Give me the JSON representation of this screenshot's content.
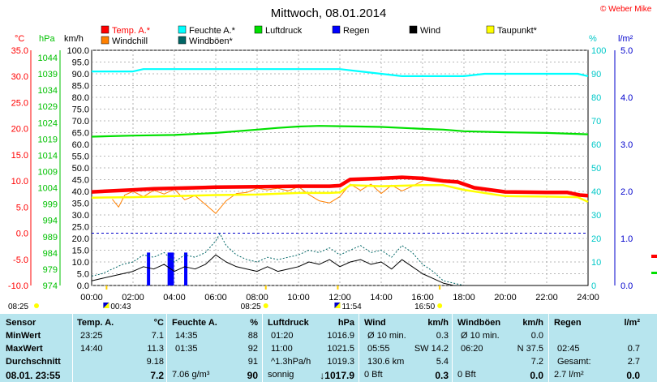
{
  "title": "Mittwoch, 08.01.2014",
  "copyright": "© Weber Mike",
  "colors": {
    "temp": "#ff0000",
    "humidity": "#00ffff",
    "pressure": "#00e000",
    "rain": "#0000ff",
    "wind": "#000000",
    "dewpoint": "#ffff00",
    "windchill": "#ff8000",
    "gusts": "#006666",
    "grid": "#a0a0a0",
    "zero_line": "#0000cc",
    "table_bg": "#b7e5ee"
  },
  "axes": {
    "temp": {
      "label": "°C",
      "ticks": [
        "35.0",
        "30.0",
        "25.0",
        "20.0",
        "15.0",
        "10.0",
        "5.0",
        "0.0",
        "-5.0",
        "-10.0"
      ]
    },
    "pressure": {
      "label": "hPa",
      "ticks": [
        "1044",
        "1039",
        "1034",
        "1029",
        "1024",
        "1019",
        "1014",
        "1009",
        "1004",
        "999",
        "994",
        "989",
        "984",
        "979",
        "974"
      ]
    },
    "wind": {
      "label": "km/h",
      "ticks": [
        "100.0",
        "95.0",
        "90.0",
        "85.0",
        "80.0",
        "75.0",
        "70.0",
        "65.0",
        "60.0",
        "55.0",
        "50.0",
        "45.0",
        "40.0",
        "35.0",
        "30.0",
        "25.0",
        "20.0",
        "15.0",
        "10.0",
        "5.0",
        "0.0"
      ]
    },
    "humidity": {
      "label": "%",
      "ticks": [
        "100",
        "90",
        "80",
        "70",
        "60",
        "50",
        "40",
        "30",
        "20",
        "10",
        "0"
      ]
    },
    "rain": {
      "label": "l/m²",
      "ticks": [
        "5.0",
        "4.0",
        "3.0",
        "2.0",
        "1.0",
        "0.0"
      ]
    },
    "time_ticks": [
      "00:00",
      "02:00",
      "04:00",
      "06:00",
      "08:00",
      "10:00",
      "12:00",
      "14:00",
      "16:00",
      "18:00",
      "20:00",
      "22:00",
      "24:00"
    ]
  },
  "legend": [
    {
      "label": "Temp. A.*",
      "color": "#ff0000"
    },
    {
      "label": "Feuchte A.*",
      "color": "#00ffff"
    },
    {
      "label": "Luftdruck",
      "color": "#00e000"
    },
    {
      "label": "Regen",
      "color": "#0000ff"
    },
    {
      "label": "Wind",
      "color": "#000000"
    },
    {
      "label": "Taupunkt*",
      "color": "#ffff00"
    },
    {
      "label": "Windchill",
      "color": "#ff8000"
    },
    {
      "label": "Windböen*",
      "color": "#006666"
    }
  ],
  "sun_markers": [
    {
      "label": "08:25",
      "hour": -0.3
    },
    {
      "label": "00:43",
      "hour": 0.72
    },
    {
      "label": "08:25",
      "hour": 8.42
    },
    {
      "label": "11:54",
      "hour": 11.9
    },
    {
      "label": "16:50",
      "hour": 16.83
    }
  ],
  "chart_data": {
    "type": "line",
    "title": "Mittwoch, 08.01.2014",
    "x_unit": "hour",
    "xlim": [
      0,
      24
    ],
    "series": [
      {
        "name": "Temp. A.*",
        "axis": "temp",
        "ylim": [
          -10,
          35
        ],
        "x": [
          0,
          2,
          3,
          4,
          6,
          8,
          10,
          11.5,
          12,
          12.5,
          14,
          15,
          16,
          17,
          17.7,
          18.5,
          20,
          22,
          23,
          23.6,
          24
        ],
        "y": [
          7.9,
          8.3,
          8.5,
          8.6,
          8.8,
          8.9,
          9.0,
          9.0,
          9.1,
          10.3,
          10.5,
          10.7,
          10.5,
          10.0,
          9.8,
          8.7,
          7.9,
          7.8,
          7.8,
          7.3,
          7.2
        ]
      },
      {
        "name": "Feuchte A.*",
        "axis": "humidity",
        "ylim": [
          0,
          100
        ],
        "x": [
          0,
          2,
          2.5,
          4,
          6,
          8,
          10,
          12,
          13,
          14,
          15,
          16,
          17,
          18,
          19,
          20,
          22,
          23.5,
          24
        ],
        "y": [
          91,
          91,
          92,
          92,
          92,
          92,
          92,
          92,
          91,
          90,
          89,
          89,
          89,
          89,
          90,
          90,
          90,
          90,
          89
        ]
      },
      {
        "name": "Luftdruck",
        "axis": "pressure",
        "ylim": [
          974,
          1044
        ],
        "x": [
          0,
          2,
          4,
          6,
          8,
          9,
          10,
          11,
          12,
          13,
          14,
          15,
          16,
          17,
          18,
          20,
          22,
          24
        ],
        "y": [
          1018.3,
          1018.6,
          1018.8,
          1019.4,
          1020.4,
          1020.9,
          1021.3,
          1021.5,
          1021.4,
          1021.3,
          1021.2,
          1020.9,
          1020.6,
          1020.4,
          1019.9,
          1019.6,
          1019.4,
          1019.0
        ]
      },
      {
        "name": "Taupunkt*",
        "axis": "temp",
        "ylim": [
          -10,
          35
        ],
        "x": [
          0,
          2,
          4,
          6,
          8,
          10,
          11.5,
          12,
          12.5,
          14,
          16,
          17,
          18,
          20,
          22,
          23.5,
          24
        ],
        "y": [
          6.8,
          6.9,
          7.1,
          7.3,
          7.4,
          7.7,
          7.7,
          7.8,
          9.2,
          9.0,
          9.2,
          9.2,
          8.3,
          7.1,
          7.0,
          6.9,
          6.0
        ]
      },
      {
        "name": "Windchill",
        "axis": "temp",
        "ylim": [
          -10,
          35
        ],
        "x": [
          1,
          1.3,
          1.6,
          2,
          2.5,
          3,
          3.5,
          4,
          4.5,
          5,
          5.5,
          6,
          6.5,
          7,
          7.5,
          8,
          8.5,
          9,
          9.5,
          10,
          10.5,
          11,
          11.5,
          12,
          12.5,
          13,
          13.5,
          14,
          14.5,
          15,
          15.5,
          16
        ],
        "y": [
          6.5,
          5.0,
          7.3,
          8.0,
          7.0,
          8.2,
          7.5,
          8.4,
          6.4,
          7.2,
          5.5,
          3.8,
          6.2,
          7.6,
          7.8,
          8.6,
          8.3,
          8.6,
          8.1,
          8.9,
          7.4,
          6.2,
          5.8,
          7.0,
          9.4,
          8.2,
          9.4,
          7.6,
          9.2,
          8.1,
          9.0,
          10.0
        ]
      },
      {
        "name": "Wind",
        "axis": "wind",
        "ylim": [
          0,
          100
        ],
        "x": [
          0,
          0.5,
          1,
          1.5,
          2,
          2.5,
          3,
          3.5,
          4,
          4.5,
          5,
          5.5,
          6,
          6.5,
          7,
          7.5,
          8,
          8.5,
          9,
          9.5,
          10,
          10.5,
          11,
          11.5,
          12,
          12.5,
          13,
          13.5,
          14,
          14.5,
          15,
          15.5,
          16,
          16.5,
          17,
          17.5,
          18,
          20,
          22,
          24
        ],
        "y": [
          2,
          3,
          4,
          5,
          6,
          8,
          7,
          9,
          6,
          8,
          7,
          9,
          13,
          10,
          8,
          7,
          6,
          8,
          6,
          7,
          8,
          10,
          9,
          11,
          8,
          10,
          11,
          9,
          10,
          7,
          11,
          8,
          5,
          3,
          1,
          0,
          0,
          0,
          0,
          0
        ]
      },
      {
        "name": "Windböen*",
        "axis": "wind",
        "ylim": [
          0,
          100
        ],
        "x": [
          0,
          0.5,
          1,
          1.5,
          2,
          2.5,
          3,
          3.5,
          4,
          4.5,
          5,
          5.5,
          6,
          6.2,
          6.5,
          7,
          7.5,
          8,
          8.5,
          9,
          9.5,
          10,
          10.5,
          11,
          11.5,
          12,
          12.5,
          13,
          13.5,
          14,
          14.5,
          15,
          15.5,
          16,
          16.5,
          17,
          17.5,
          18
        ],
        "y": [
          4,
          5,
          7,
          9,
          10,
          13,
          12,
          14,
          10,
          13,
          12,
          14,
          19,
          22,
          17,
          13,
          11,
          10,
          12,
          11,
          12,
          13,
          15,
          14,
          16,
          13,
          15,
          17,
          14,
          15,
          12,
          17,
          14,
          9,
          6,
          2,
          1,
          0
        ]
      },
      {
        "name": "Regen",
        "axis": "rain",
        "ylim": [
          0,
          5
        ],
        "kind": "bar",
        "x": [
          2.75,
          3.75,
          3.9,
          4.55
        ],
        "y": [
          0.7,
          0.7,
          0.7,
          0.7
        ]
      }
    ]
  },
  "table": {
    "sensor": {
      "header": "Sensor",
      "rows": [
        "MinWert",
        "MaxWert",
        "Durchschnitt",
        "08.01. 23:55"
      ]
    },
    "temp": {
      "header": "Temp. A.",
      "unit": "°C",
      "rows": [
        [
          "23:25",
          "7.1"
        ],
        [
          "14:40",
          "11.3"
        ],
        [
          "",
          "9.18"
        ],
        [
          "",
          "7.2"
        ]
      ]
    },
    "humidity": {
      "header": "Feuchte A.",
      "unit": "%",
      "rows": [
        [
          "14:35",
          "88"
        ],
        [
          "01:35",
          "92"
        ],
        [
          "",
          "91"
        ],
        [
          "7.06 g/m³",
          "90"
        ]
      ]
    },
    "pressure": {
      "header": "Luftdruck",
      "unit": "hPa",
      "rows": [
        [
          "01:20",
          "1016.9"
        ],
        [
          "11:00",
          "1021.5"
        ],
        [
          "^1.3hPa/h",
          "1019.3"
        ],
        [
          "sonnig",
          "↓1017.9"
        ]
      ]
    },
    "wind": {
      "header": "Wind",
      "unit": "km/h",
      "rows": [
        [
          "Ø 10 min.",
          "0.3"
        ],
        [
          "05:55",
          "SW 14.2"
        ],
        [
          "130.6 km",
          "5.4"
        ],
        [
          "0 Bft",
          "0.3"
        ]
      ]
    },
    "gusts": {
      "header": "Windböen",
      "unit": "km/h",
      "rows": [
        [
          "Ø 10 min.",
          "0.0"
        ],
        [
          "06:20",
          "N 37.5"
        ],
        [
          "",
          "7.2"
        ],
        [
          "0 Bft",
          "0.0"
        ]
      ]
    },
    "rain": {
      "header": "Regen",
      "unit": "l/m²",
      "rows": [
        [
          "",
          ""
        ],
        [
          "02:45",
          "0.7"
        ],
        [
          "Gesamt:",
          "2.7"
        ],
        [
          "2.7 l/m²",
          "0.0"
        ]
      ]
    }
  }
}
